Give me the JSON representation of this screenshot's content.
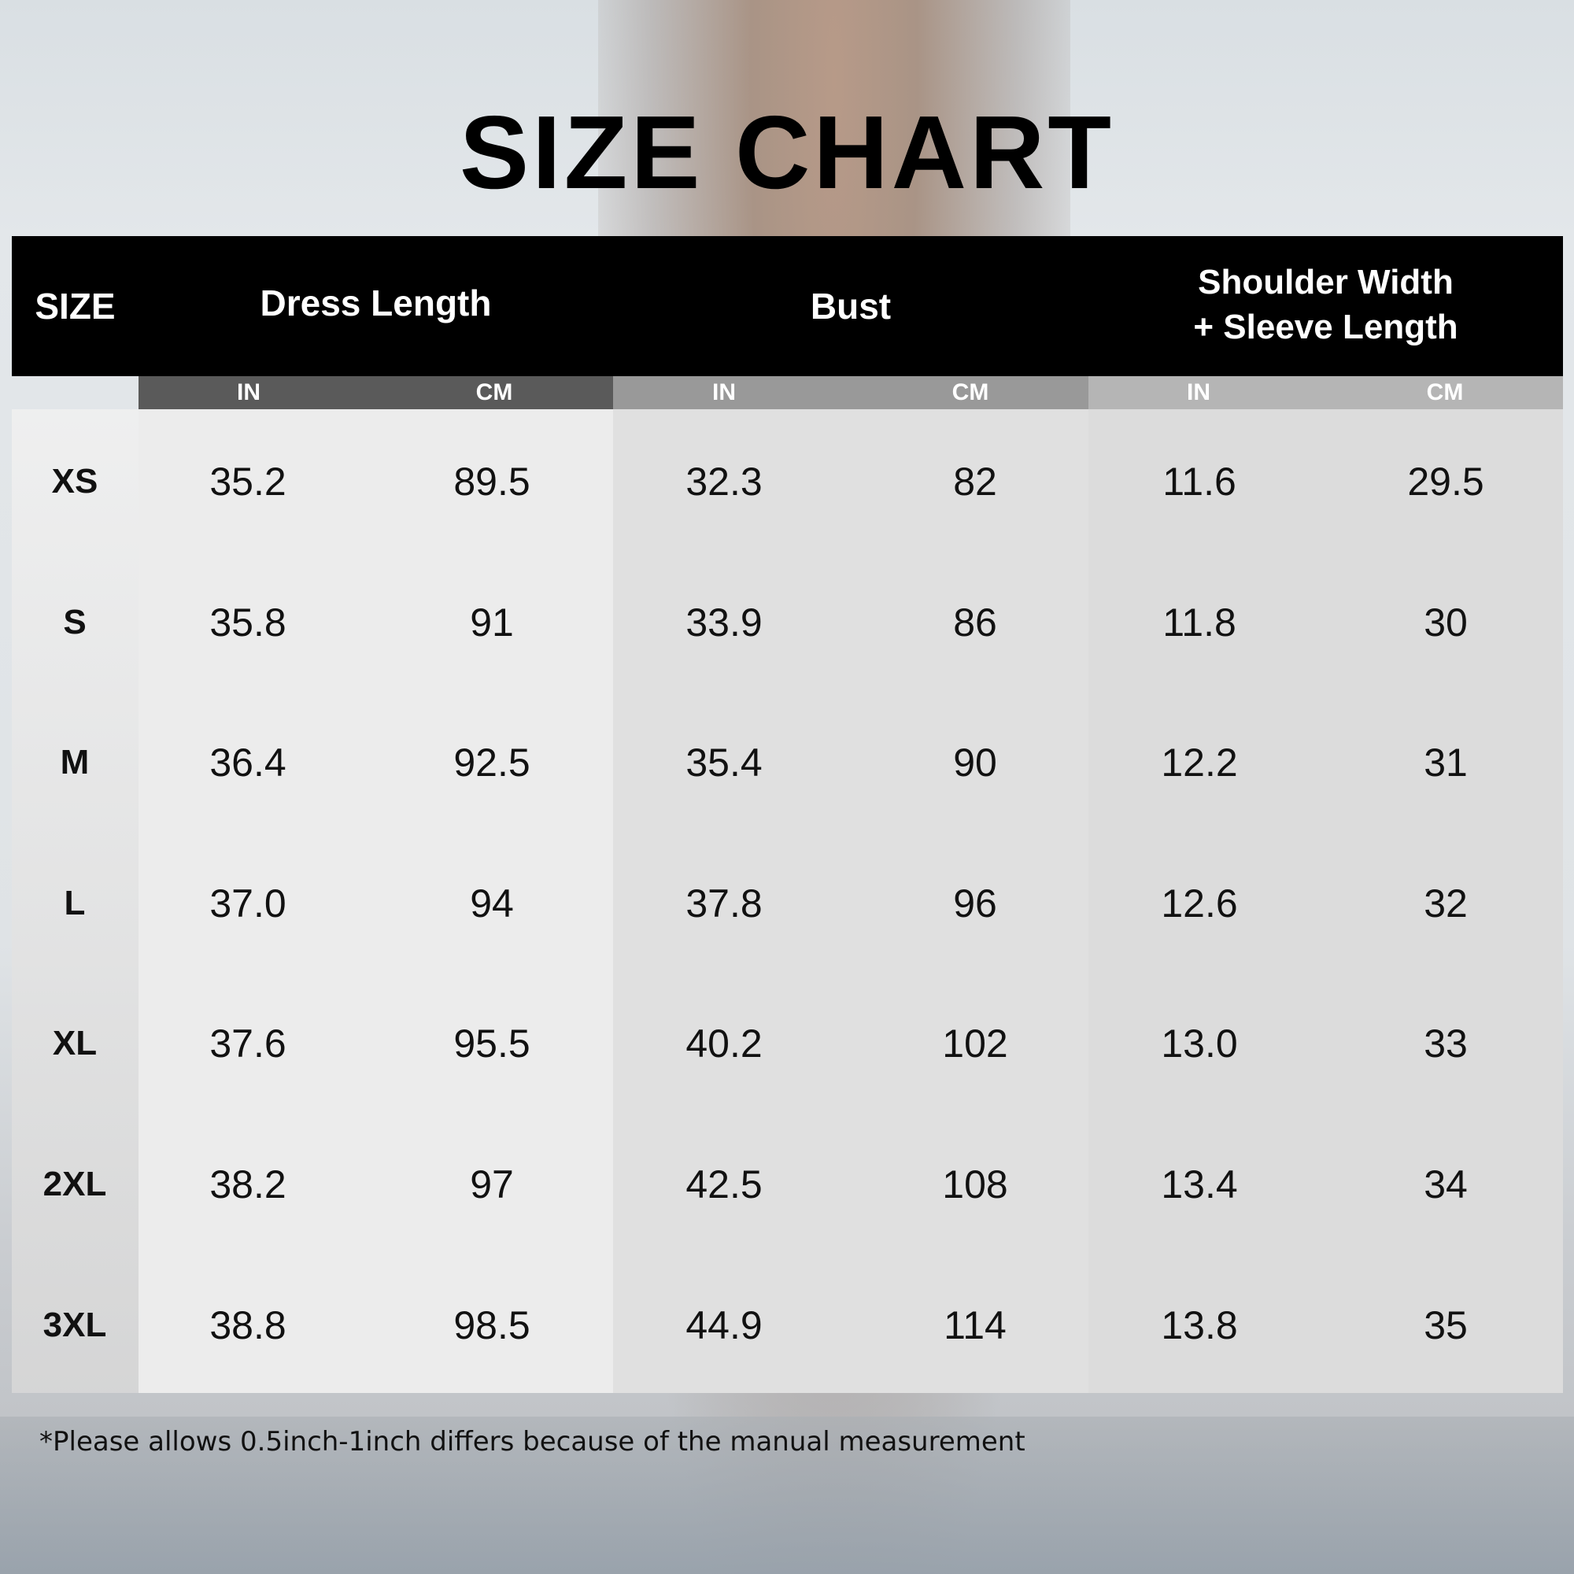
{
  "title": "SIZE CHART",
  "headers": {
    "size": "SIZE",
    "dress_length": "Dress Length",
    "bust": "Bust",
    "shoulder_line1": "Shoulder Width",
    "shoulder_line2": "+ Sleeve Length",
    "in": "IN",
    "cm": "CM"
  },
  "colors": {
    "dress_sub": "#5a5a5a",
    "bust_sub": "#999999",
    "shoulder_sub": "#b5b5b5"
  },
  "rows": [
    {
      "size": "XS",
      "dress_in": "35.2",
      "dress_cm": "89.5",
      "bust_in": "32.3",
      "bust_cm": "82",
      "shoulder_in": "11.6",
      "shoulder_cm": "29.5"
    },
    {
      "size": "S",
      "dress_in": "35.8",
      "dress_cm": "91",
      "bust_in": "33.9",
      "bust_cm": "86",
      "shoulder_in": "11.8",
      "shoulder_cm": "30"
    },
    {
      "size": "M",
      "dress_in": "36.4",
      "dress_cm": "92.5",
      "bust_in": "35.4",
      "bust_cm": "90",
      "shoulder_in": "12.2",
      "shoulder_cm": "31"
    },
    {
      "size": "L",
      "dress_in": "37.0",
      "dress_cm": "94",
      "bust_in": "37.8",
      "bust_cm": "96",
      "shoulder_in": "12.6",
      "shoulder_cm": "32"
    },
    {
      "size": "XL",
      "dress_in": "37.6",
      "dress_cm": "95.5",
      "bust_in": "40.2",
      "bust_cm": "102",
      "shoulder_in": "13.0",
      "shoulder_cm": "33"
    },
    {
      "size": "2XL",
      "dress_in": "38.2",
      "dress_cm": "97",
      "bust_in": "42.5",
      "bust_cm": "108",
      "shoulder_in": "13.4",
      "shoulder_cm": "34"
    },
    {
      "size": "3XL",
      "dress_in": "38.8",
      "dress_cm": "98.5",
      "bust_in": "44.9",
      "bust_cm": "114",
      "shoulder_in": "13.8",
      "shoulder_cm": "35"
    }
  ],
  "footnote": "*Please allows 0.5inch-1inch differs because of the manual measurement"
}
